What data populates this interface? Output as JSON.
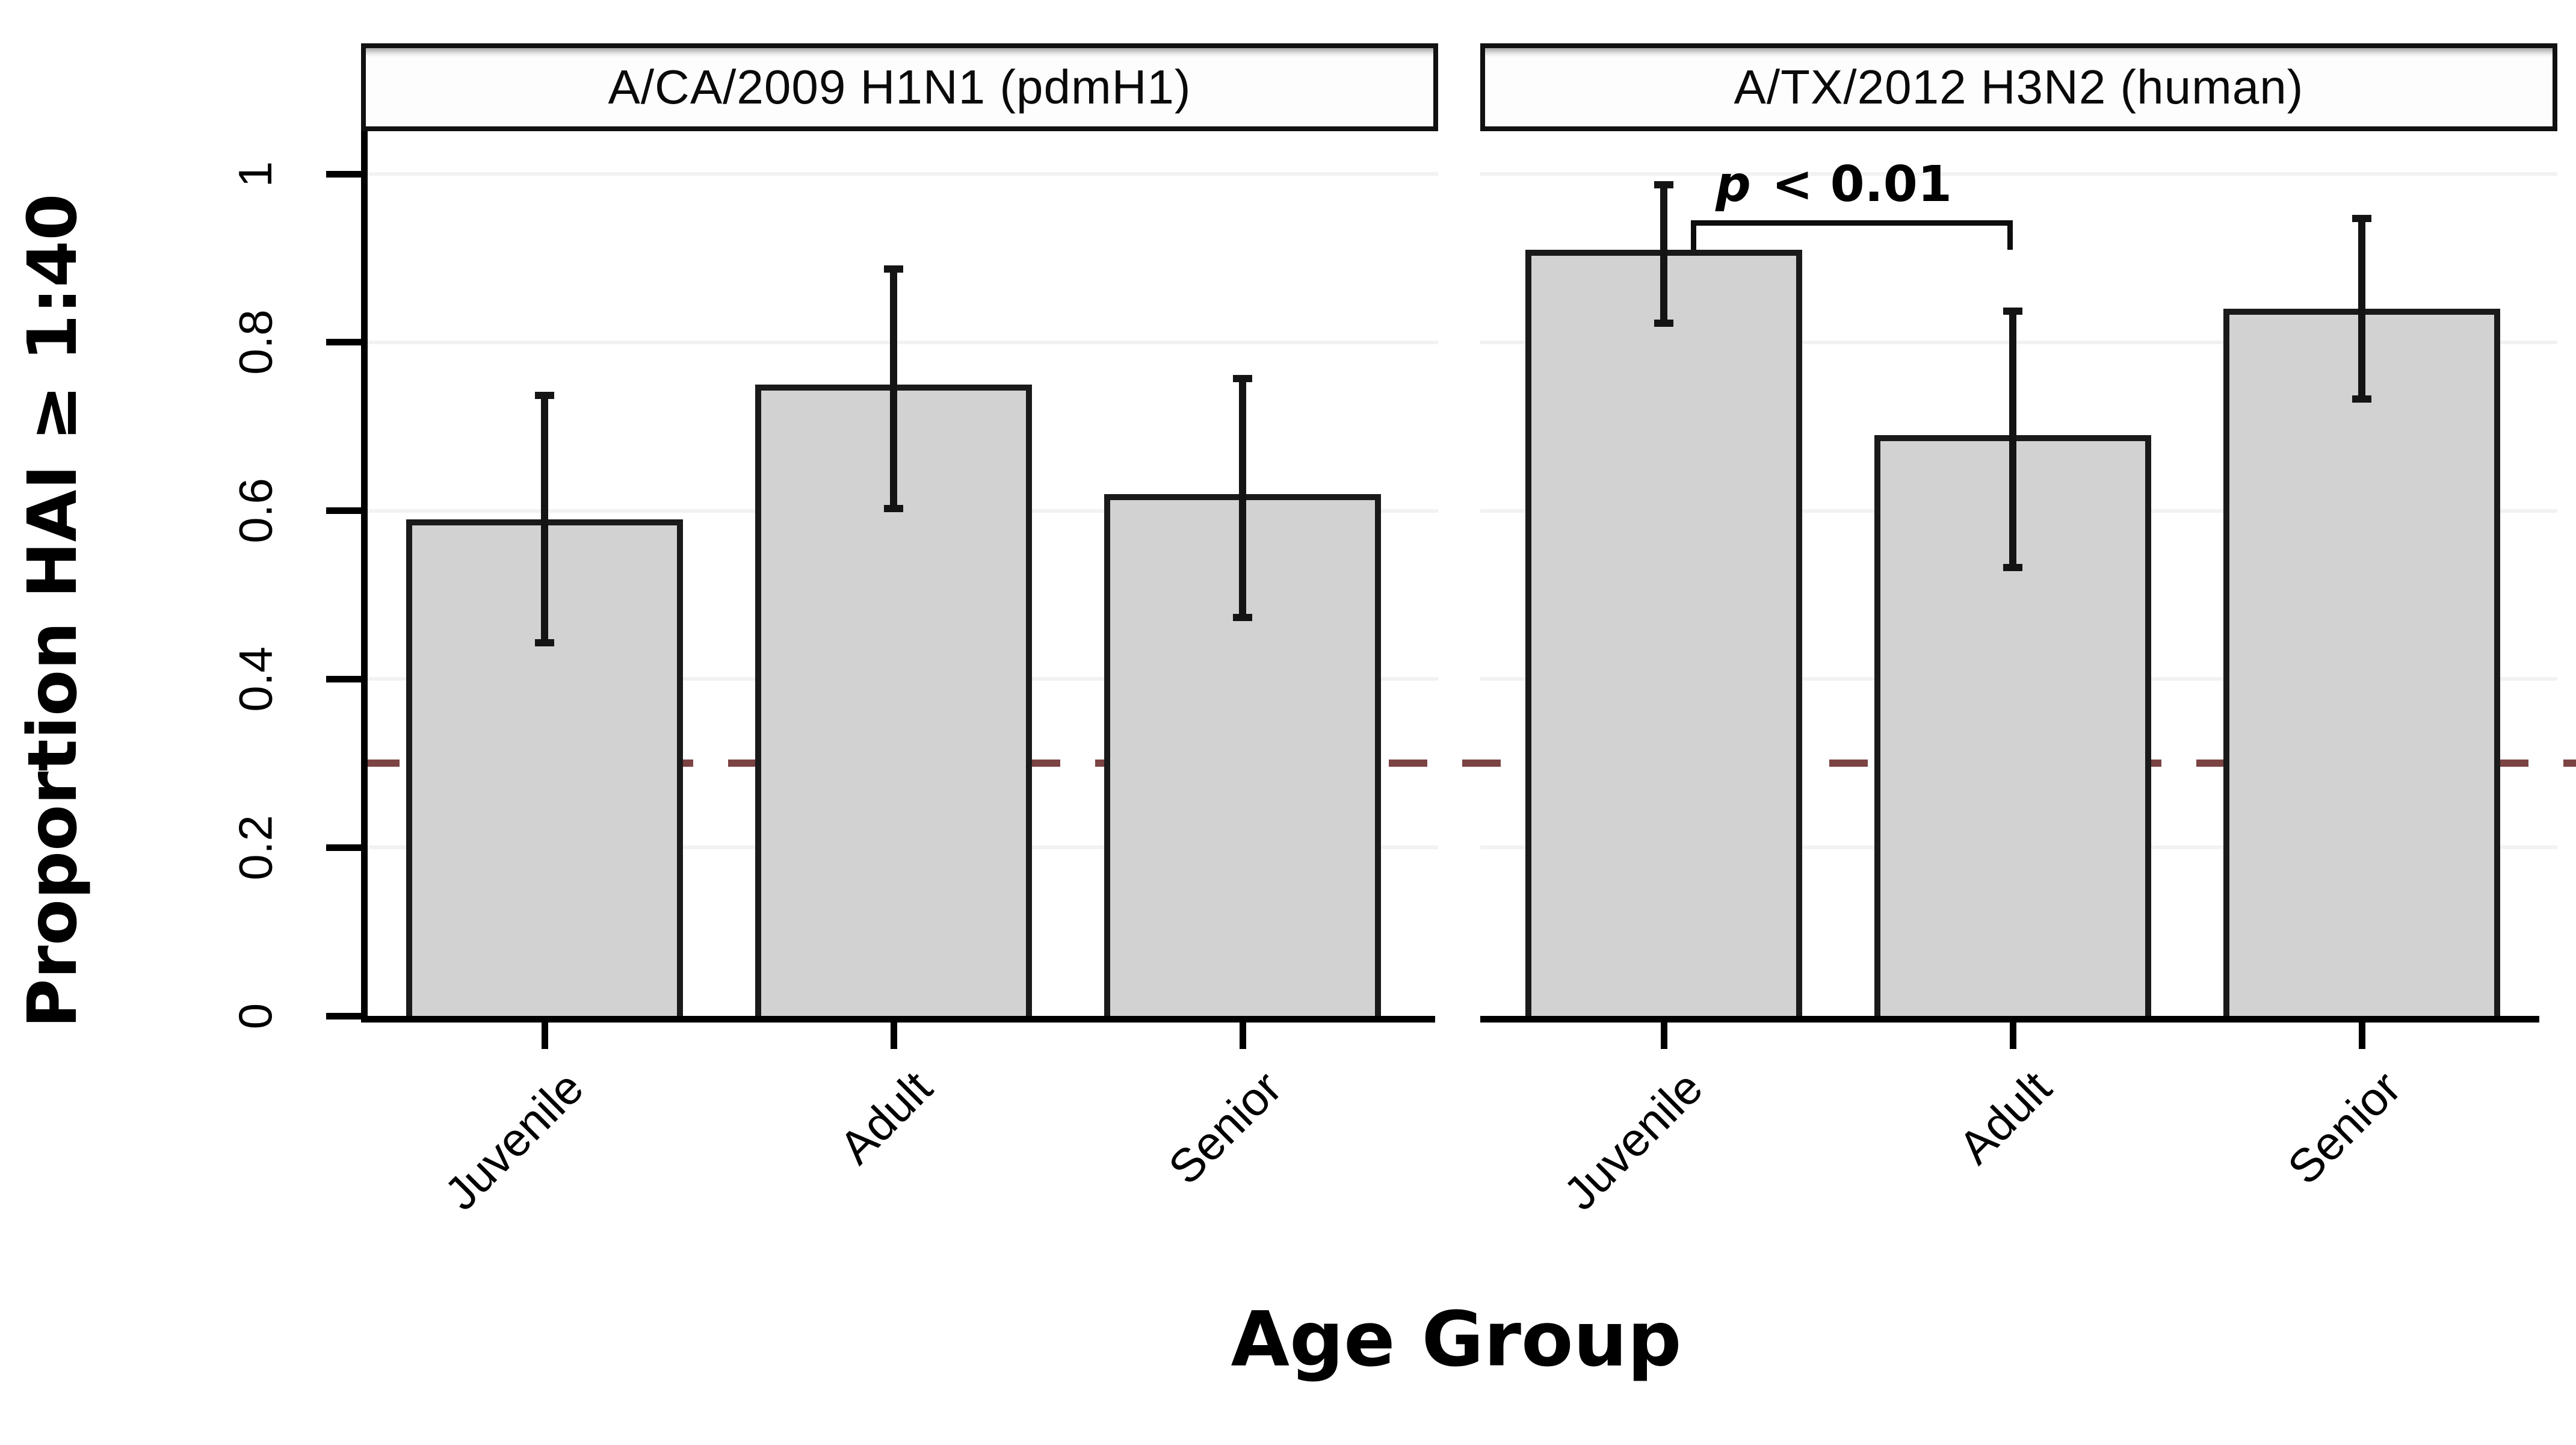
{
  "figure": {
    "y_axis_label": "Proportion HAI ≥ 1:40",
    "x_axis_label": "Age Group"
  },
  "chart_data": {
    "type": "bar",
    "categories": [
      "Juvenile",
      "Adult",
      "Senior"
    ],
    "xlabel": "Age Group",
    "ylabel": "Proportion HAI ≥ 1:40",
    "ylim": [
      0,
      1
    ],
    "yticks": [
      0,
      0.2,
      0.4,
      0.6,
      0.8,
      1
    ],
    "ytick_labels": [
      "0",
      "0.2",
      "0.4",
      "0.6",
      "0.8",
      "1"
    ],
    "grid": "faint horizontal lines at y ticks",
    "legend": "none",
    "bar_fill_color": "#d2d2d2",
    "bar_border_color": "#1a1a1a",
    "error_bar_color": "#141414",
    "reference_line": {
      "y": 0.3,
      "style": "dashed",
      "color": "#7c4343"
    },
    "panels": [
      {
        "title": "A/CA/2009 H1N1 (pdmH1)",
        "series": [
          {
            "category": "Juvenile",
            "value": 0.59,
            "ci_low": 0.44,
            "ci_high": 0.74
          },
          {
            "category": "Adult",
            "value": 0.75,
            "ci_low": 0.6,
            "ci_high": 0.89
          },
          {
            "category": "Senior",
            "value": 0.62,
            "ci_low": 0.47,
            "ci_high": 0.76
          }
        ]
      },
      {
        "title": "A/TX/2012 H3N2 (human)",
        "series": [
          {
            "category": "Juvenile",
            "value": 0.91,
            "ci_low": 0.82,
            "ci_high": 0.99
          },
          {
            "category": "Adult",
            "value": 0.69,
            "ci_low": 0.53,
            "ci_high": 0.84
          },
          {
            "category": "Senior",
            "value": 0.84,
            "ci_low": 0.73,
            "ci_high": 0.95
          }
        ],
        "annotation": {
          "text": "p < 0.01",
          "from": "Juvenile",
          "to": "Adult",
          "bracket_y": 0.945,
          "bracket_drop_to": 0.91
        }
      }
    ]
  }
}
